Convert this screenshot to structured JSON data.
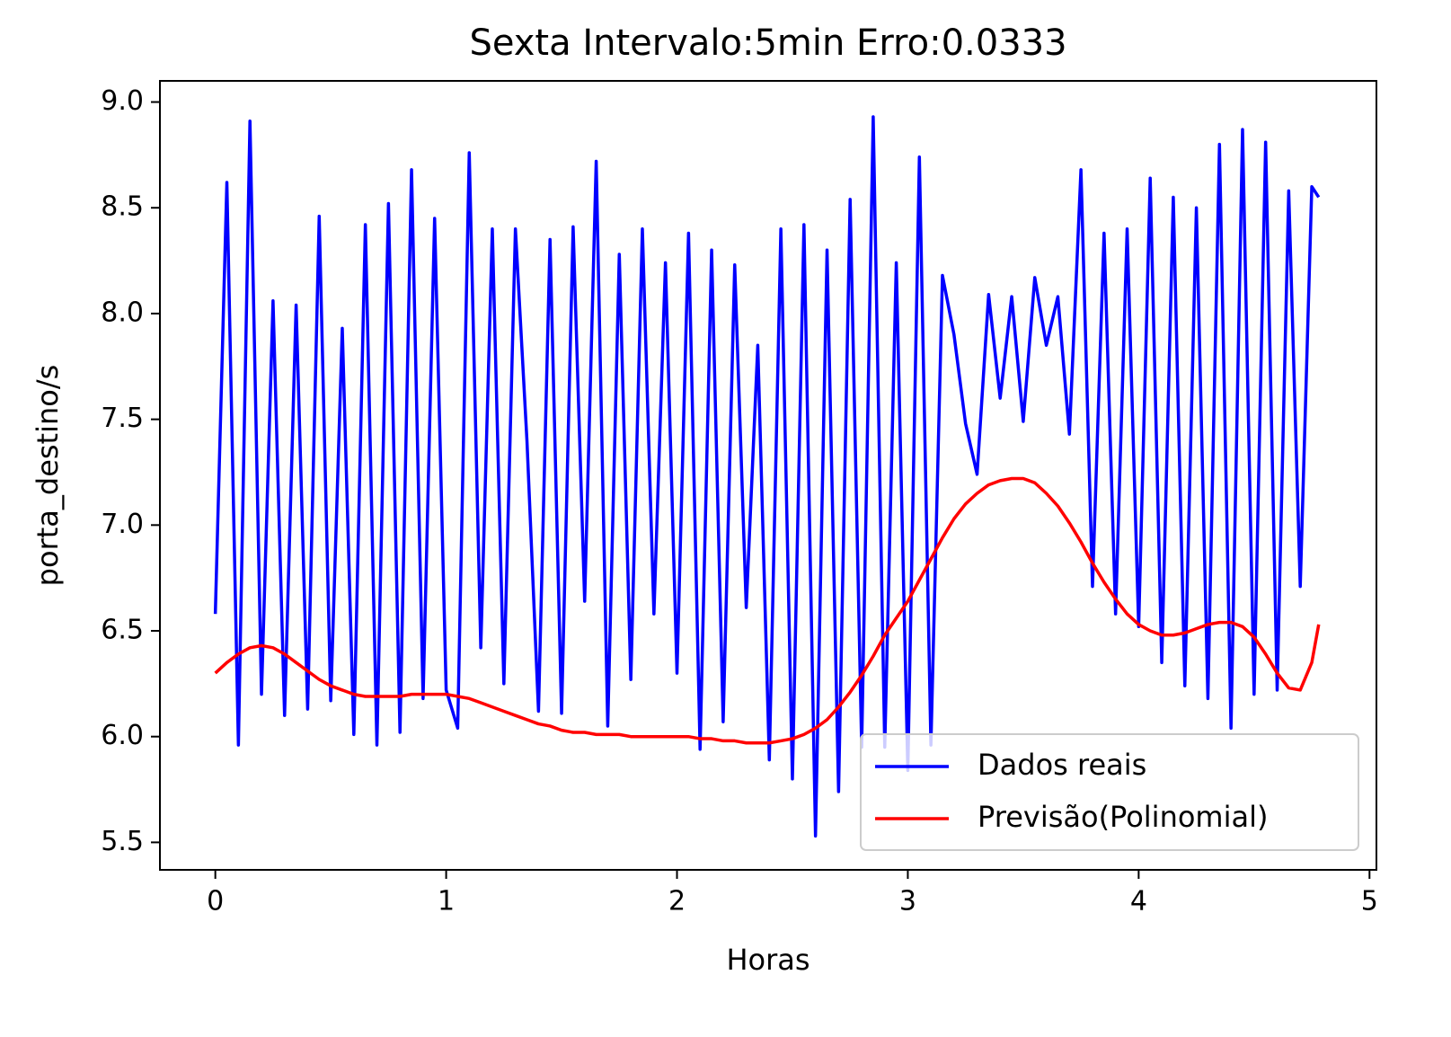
{
  "chart_data": {
    "type": "line",
    "title": "Sexta Intervalo:5min Erro:0.0333",
    "xlabel": "Horas",
    "ylabel": "porta_destino/s",
    "x": [
      0.0,
      0.05,
      0.1,
      0.15,
      0.2,
      0.25,
      0.3,
      0.35,
      0.4,
      0.45,
      0.5,
      0.55,
      0.6,
      0.65,
      0.7,
      0.75,
      0.8,
      0.85,
      0.9,
      0.95,
      1.0,
      1.05,
      1.1,
      1.15,
      1.2,
      1.25,
      1.3,
      1.35,
      1.4,
      1.45,
      1.5,
      1.55,
      1.6,
      1.65,
      1.7,
      1.75,
      1.8,
      1.85,
      1.9,
      1.95,
      2.0,
      2.05,
      2.1,
      2.15,
      2.2,
      2.25,
      2.3,
      2.35,
      2.4,
      2.45,
      2.5,
      2.55,
      2.6,
      2.65,
      2.7,
      2.75,
      2.8,
      2.85,
      2.9,
      2.95,
      3.0,
      3.05,
      3.1,
      3.15,
      3.2,
      3.25,
      3.3,
      3.35,
      3.4,
      3.45,
      3.5,
      3.55,
      3.6,
      3.65,
      3.7,
      3.75,
      3.8,
      3.85,
      3.9,
      3.95,
      4.0,
      4.05,
      4.1,
      4.15,
      4.2,
      4.25,
      4.3,
      4.35,
      4.4,
      4.45,
      4.5,
      4.55,
      4.6,
      4.65,
      4.7,
      4.75,
      4.78
    ],
    "series": [
      {
        "name": "Dados reais",
        "color": "#0000ff",
        "values": [
          6.58,
          8.62,
          5.96,
          8.91,
          6.2,
          8.06,
          6.1,
          8.04,
          6.13,
          8.46,
          6.17,
          7.93,
          6.01,
          8.42,
          5.96,
          8.52,
          6.02,
          8.68,
          6.18,
          8.45,
          6.22,
          6.04,
          8.76,
          6.42,
          8.4,
          6.25,
          8.4,
          7.4,
          6.12,
          8.35,
          6.11,
          8.41,
          6.64,
          8.72,
          6.05,
          8.28,
          6.27,
          8.4,
          6.58,
          8.24,
          6.3,
          8.38,
          5.94,
          8.3,
          6.07,
          8.23,
          6.61,
          7.85,
          5.89,
          8.4,
          5.8,
          8.42,
          5.53,
          8.3,
          5.74,
          8.54,
          5.95,
          8.93,
          5.95,
          8.24,
          5.84,
          8.74,
          5.96,
          8.18,
          7.9,
          7.48,
          7.24,
          8.09,
          7.6,
          8.08,
          7.49,
          8.17,
          7.85,
          8.08,
          7.43,
          8.68,
          6.71,
          8.38,
          6.58,
          8.4,
          6.52,
          8.64,
          6.35,
          8.55,
          6.24,
          8.5,
          6.18,
          8.8,
          6.04,
          8.87,
          6.2,
          8.81,
          6.22,
          8.58,
          6.71,
          8.6,
          8.55
        ]
      },
      {
        "name": "Previsão(Polinomial)",
        "color": "#ff0000",
        "values": [
          6.3,
          6.35,
          6.39,
          6.42,
          6.43,
          6.42,
          6.39,
          6.35,
          6.31,
          6.27,
          6.24,
          6.22,
          6.2,
          6.19,
          6.19,
          6.19,
          6.19,
          6.2,
          6.2,
          6.2,
          6.2,
          6.19,
          6.18,
          6.16,
          6.14,
          6.12,
          6.1,
          6.08,
          6.06,
          6.05,
          6.03,
          6.02,
          6.02,
          6.01,
          6.01,
          6.01,
          6.0,
          6.0,
          6.0,
          6.0,
          6.0,
          6.0,
          5.99,
          5.99,
          5.98,
          5.98,
          5.97,
          5.97,
          5.97,
          5.98,
          5.99,
          6.01,
          6.04,
          6.08,
          6.14,
          6.21,
          6.29,
          6.38,
          6.48,
          6.56,
          6.64,
          6.74,
          6.84,
          6.94,
          7.03,
          7.1,
          7.15,
          7.19,
          7.21,
          7.22,
          7.22,
          7.2,
          7.15,
          7.09,
          7.01,
          6.92,
          6.82,
          6.73,
          6.65,
          6.58,
          6.53,
          6.5,
          6.48,
          6.48,
          6.49,
          6.51,
          6.53,
          6.54,
          6.54,
          6.52,
          6.47,
          6.39,
          6.3,
          6.23,
          6.22,
          6.35,
          6.53
        ]
      }
    ],
    "xlim": [
      -0.24,
      5.03
    ],
    "ylim": [
      5.37,
      9.1
    ],
    "xticks": [
      0,
      1,
      2,
      3,
      4,
      5
    ],
    "yticks": [
      5.5,
      {
        "value": 6,
        "label": "6.0"
      },
      6.5,
      {
        "value": 7,
        "label": "7.0"
      },
      7.5,
      {
        "value": 8,
        "label": "8.0"
      },
      8.5,
      {
        "value": 9,
        "label": "9.0"
      }
    ],
    "legend": "lower right",
    "grid": false
  }
}
